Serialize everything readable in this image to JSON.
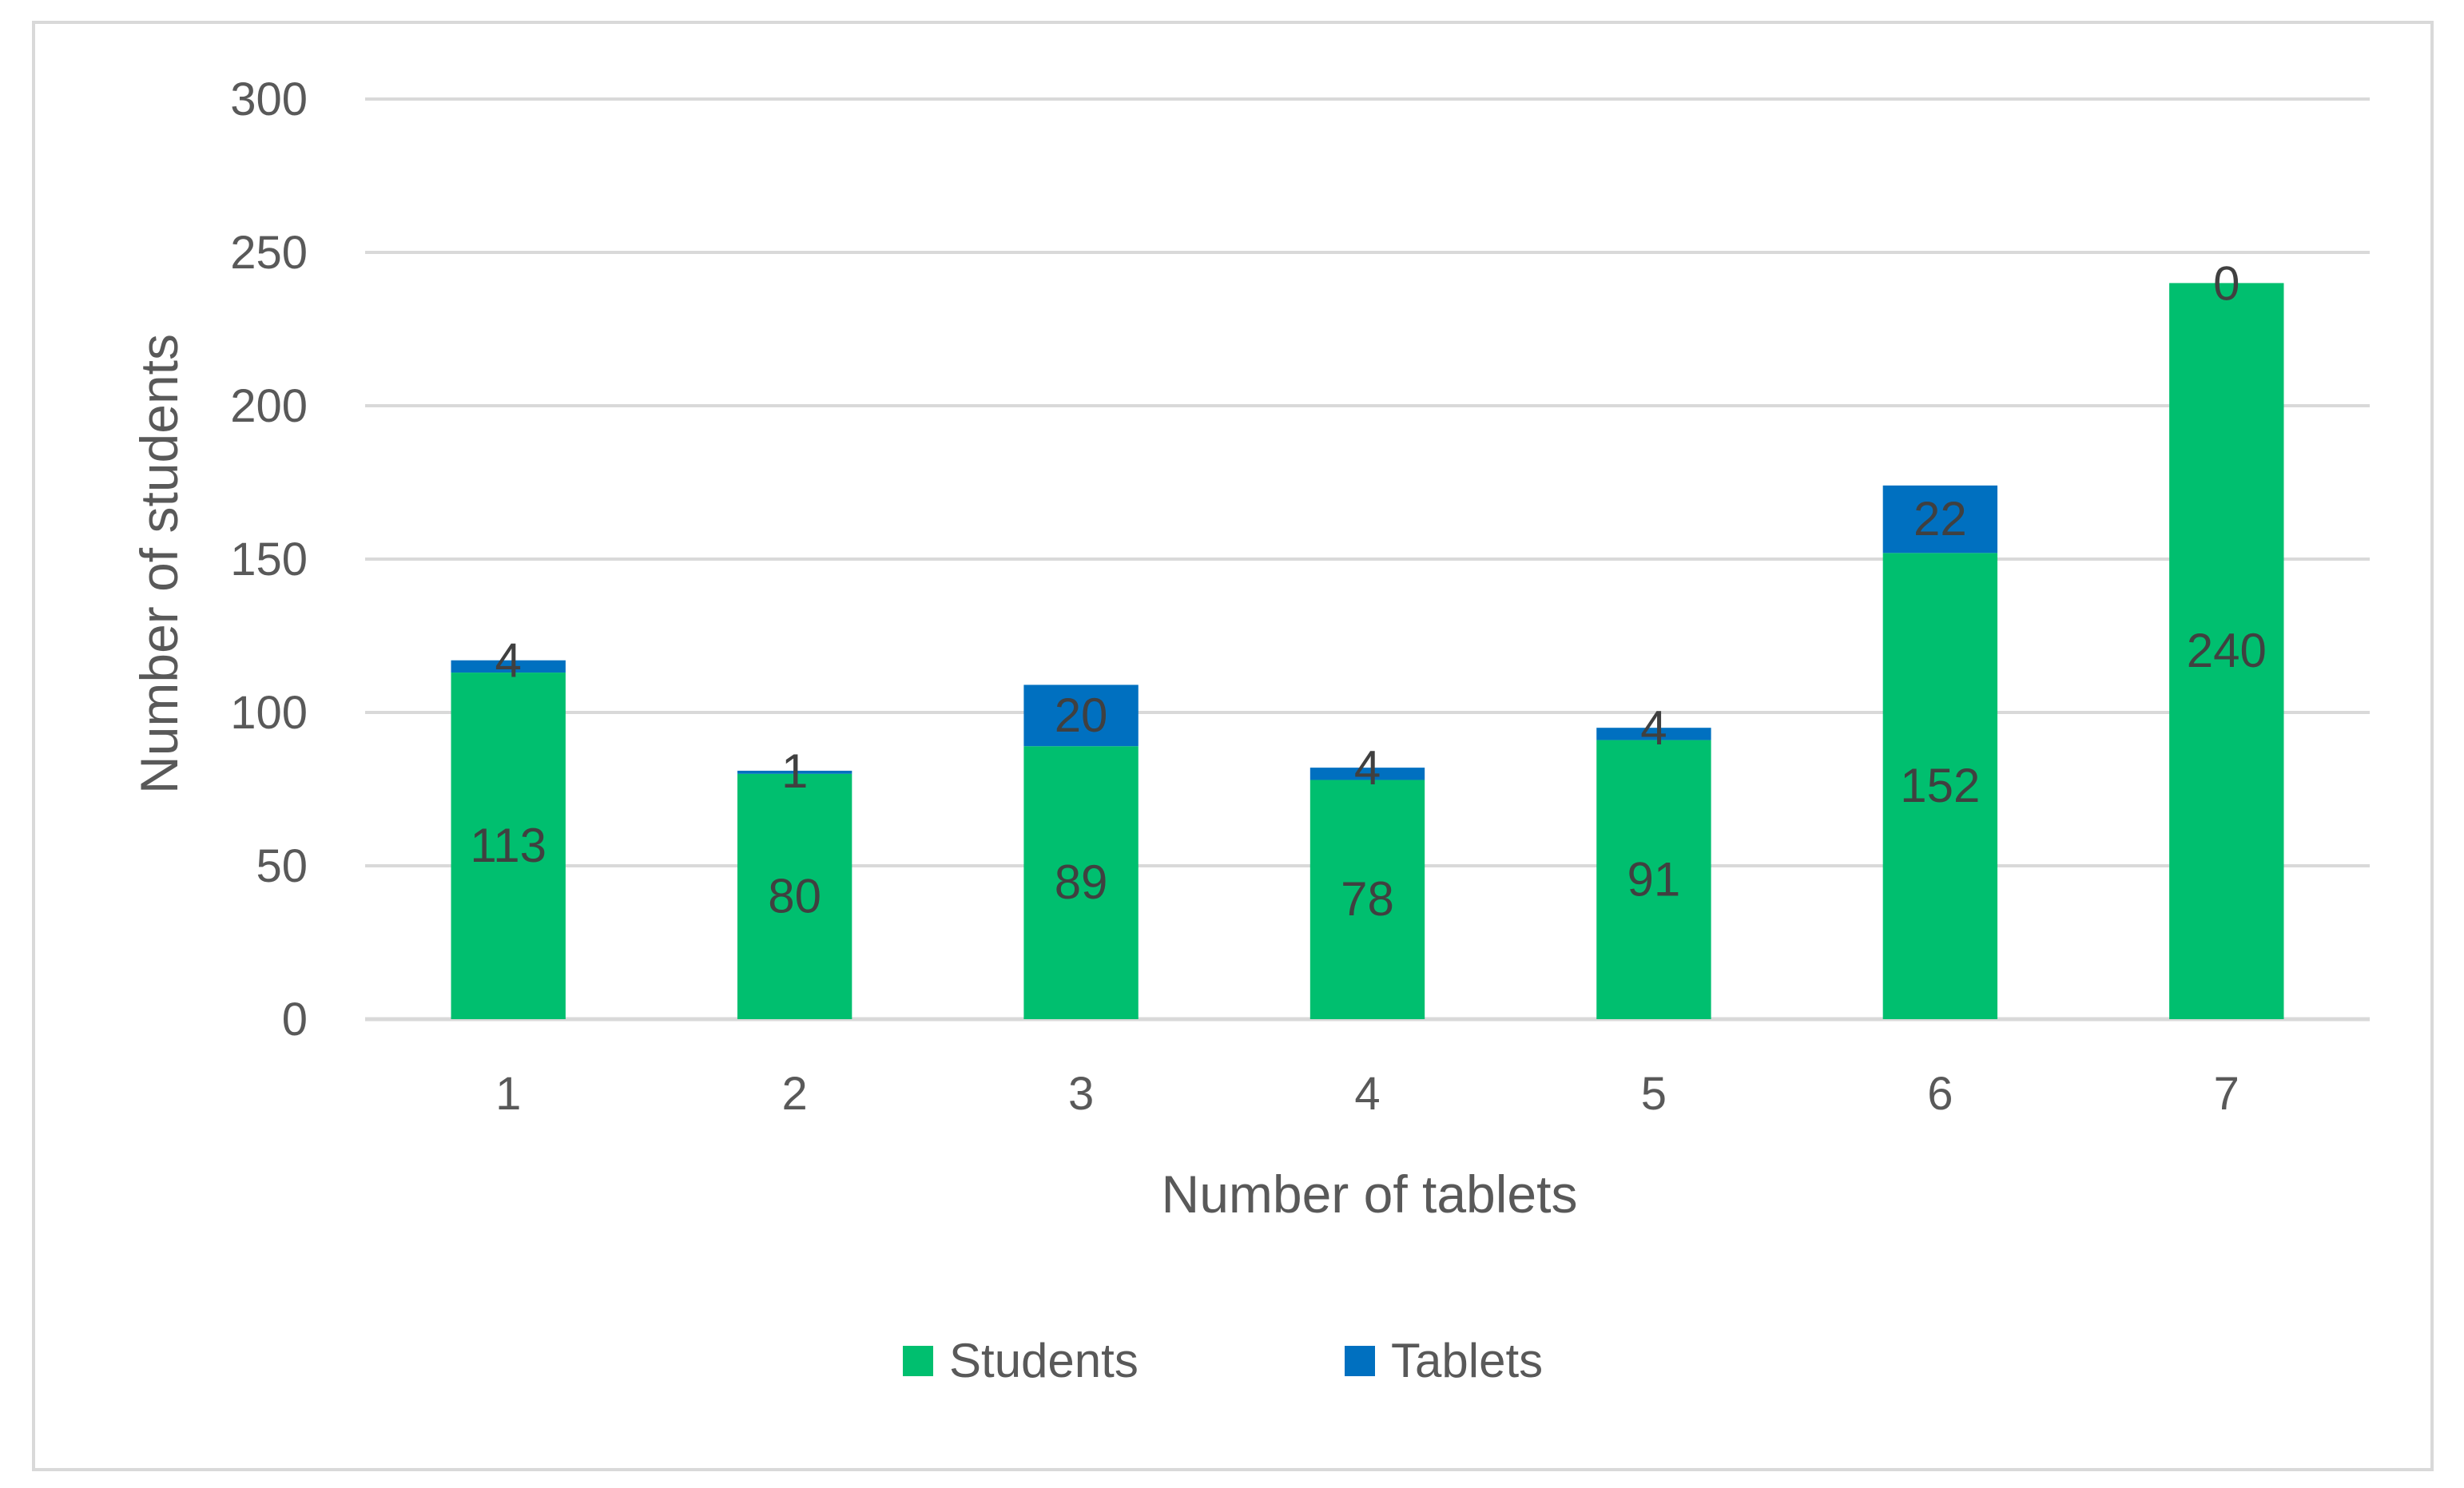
{
  "chart_data": {
    "type": "bar",
    "stacked": true,
    "title": "",
    "xlabel": "Number of tablets",
    "ylabel": "Number of students",
    "categories": [
      "1",
      "2",
      "3",
      "4",
      "5",
      "6",
      "7"
    ],
    "series": [
      {
        "name": "Students",
        "color": "#00BF6F",
        "values": [
          113,
          80,
          89,
          78,
          91,
          152,
          240
        ]
      },
      {
        "name": "Tablets",
        "color": "#0070C0",
        "values": [
          4,
          1,
          20,
          4,
          4,
          22,
          0
        ]
      }
    ],
    "ylim": [
      0,
      300
    ],
    "yticks": [
      0,
      50,
      100,
      150,
      200,
      250,
      300
    ],
    "ytick_labels": [
      "0",
      "50",
      "100",
      "150",
      "200",
      "250",
      "300"
    ],
    "grid": true,
    "legend_position": "bottom"
  }
}
